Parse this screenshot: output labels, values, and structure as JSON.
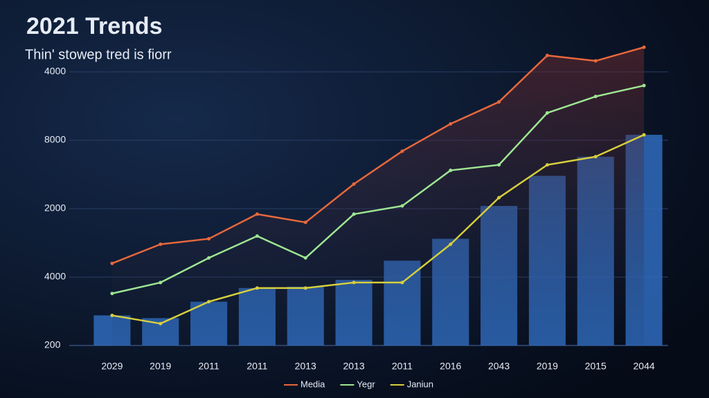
{
  "chart_data": {
    "type": "bar_line",
    "title": "2021 Trends",
    "subtitle": "Thin' stowep tred is fiorr",
    "y_axis_labels": [
      "4000",
      "8000",
      "2000",
      "4000",
      "200"
    ],
    "categories": [
      "2029",
      "2019",
      "2011",
      "2011",
      "2013",
      "2013",
      "2011",
      "2016",
      "2043",
      "2019",
      "2015",
      "2044"
    ],
    "bar_values": [
      11,
      10,
      16,
      21,
      21.5,
      24,
      31,
      39,
      51,
      62,
      69,
      77
    ],
    "bar_color": "#2f6bbd",
    "series": [
      {
        "name": "Media",
        "color": "#e8683c",
        "values": [
          30,
          37,
          39,
          48,
          45,
          59,
          71,
          81,
          89,
          106,
          104,
          109
        ]
      },
      {
        "name": "Yegr",
        "color": "#9ee692",
        "values": [
          19,
          23,
          32,
          40,
          32,
          48,
          51,
          64,
          66,
          85,
          91,
          95
        ]
      },
      {
        "name": "Janiun",
        "color": "#d6cf3c",
        "values": [
          11,
          8,
          16,
          21,
          21,
          23,
          23,
          37,
          54,
          66,
          69,
          77
        ]
      }
    ],
    "ylim": [
      0,
      115
    ],
    "grid": true
  }
}
